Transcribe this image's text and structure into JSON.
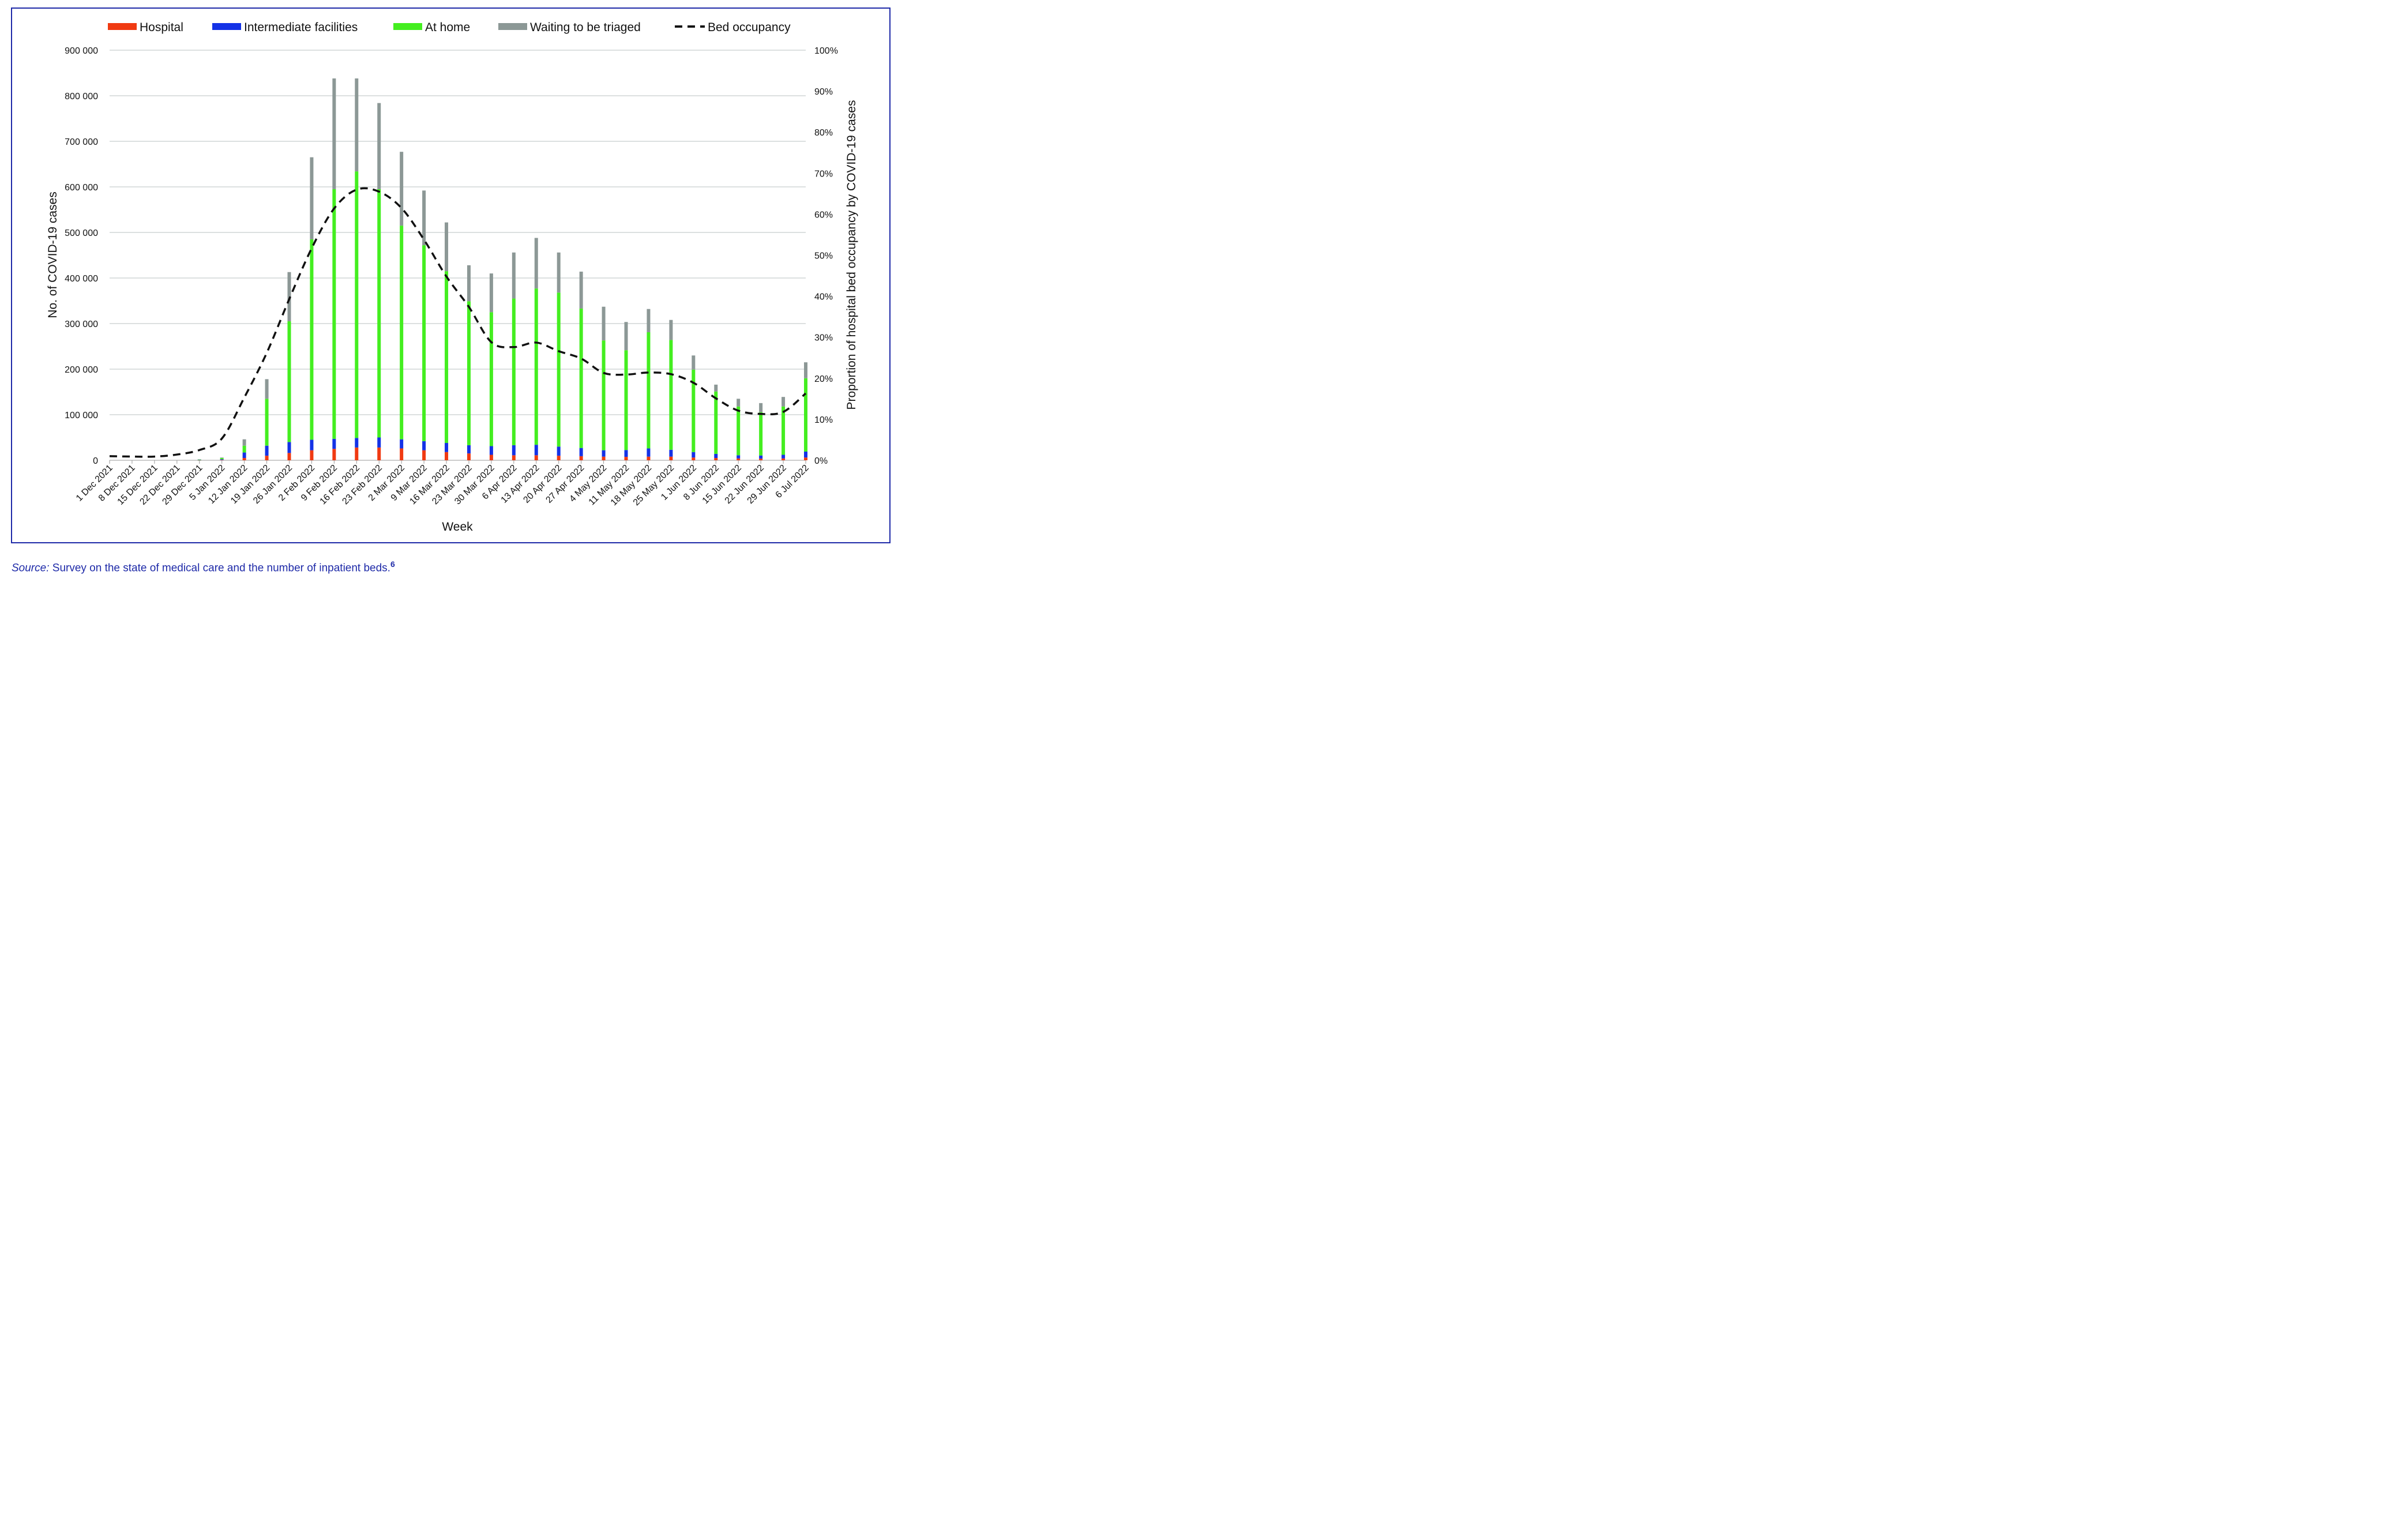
{
  "chart_data": {
    "type": "bar",
    "stacked": true,
    "xlabel": "Week",
    "ylabel": "No. of COVID-19 cases",
    "y2label": "Proportion of hospital bed occupancy by COVID-19 cases",
    "ylim": [
      0,
      900000
    ],
    "y2lim": [
      0,
      100
    ],
    "yticks": [
      "0",
      "100 000",
      "200 000",
      "300 000",
      "400 000",
      "500 000",
      "600 000",
      "700 000",
      "800 000",
      "900 000"
    ],
    "y2ticks": [
      "0%",
      "10%",
      "20%",
      "30%",
      "40%",
      "50%",
      "60%",
      "70%",
      "80%",
      "90%",
      "100%"
    ],
    "grid": true,
    "legend_position": "top",
    "categories": [
      "1 Dec 2021",
      "8 Dec 2021",
      "15 Dec 2021",
      "22 Dec 2021",
      "29 Dec 2021",
      "5 Jan 2022",
      "12 Jan 2022",
      "19 Jan 2022",
      "26 Jan 2022",
      "2 Feb 2022",
      "9 Feb 2022",
      "16 Feb 2022",
      "23 Feb 2022",
      "2 Mar 2022",
      "9 Mar 2022",
      "16 Mar 2022",
      "23 Mar 2022",
      "30 Mar 2022",
      "6 Apr 2022",
      "13 Apr 2022",
      "20 Apr 2022",
      "27 Apr 2022",
      "4 May 2022",
      "11 May 2022",
      "18 May 2022",
      "25 May 2022",
      "1 Jun 2022",
      "8 Jun 2022",
      "15 Jun 2022",
      "22 Jun 2022",
      "29 Jun 2022",
      "6 Jul 2022"
    ],
    "series": [
      {
        "name": "Hospital",
        "color": "#f03a12",
        "values": [
          0,
          0,
          0,
          0,
          200,
          800,
          5000,
          10000,
          16000,
          22000,
          25000,
          28000,
          28000,
          26000,
          22000,
          18000,
          15000,
          12000,
          11000,
          11000,
          10000,
          9000,
          8000,
          7500,
          8000,
          8000,
          6000,
          5000,
          4000,
          3500,
          4000,
          6000
        ]
      },
      {
        "name": "Intermediate facilities",
        "color": "#1432e6",
        "values": [
          0,
          0,
          0,
          0,
          300,
          1500,
          12000,
          22000,
          24000,
          23000,
          22000,
          21000,
          22000,
          20000,
          20000,
          20000,
          18000,
          19000,
          22000,
          23000,
          20000,
          18000,
          14000,
          15000,
          18000,
          15000,
          12000,
          9000,
          7000,
          7000,
          8000,
          13000
        ]
      },
      {
        "name": "At home",
        "color": "#44ee20",
        "values": [
          0,
          0,
          0,
          0,
          1000,
          2700,
          15000,
          103000,
          265000,
          440000,
          548000,
          585000,
          545000,
          469000,
          430000,
          377000,
          316000,
          294000,
          322000,
          343000,
          338000,
          306000,
          241000,
          219000,
          255000,
          241000,
          181000,
          137000,
          107000,
          95000,
          106000,
          161000
        ]
      },
      {
        "name": "Waiting to be triaged",
        "color": "#8c9896",
        "values": [
          0,
          0,
          0,
          0,
          500,
          1000,
          14000,
          43000,
          108000,
          180000,
          243000,
          204000,
          189000,
          162000,
          120000,
          107000,
          79000,
          85000,
          101000,
          111000,
          88000,
          81000,
          74000,
          62000,
          51000,
          44000,
          31000,
          15000,
          17000,
          20000,
          21000,
          35000
        ]
      }
    ],
    "line_series": {
      "name": "Bed occupancy",
      "color": "#111111",
      "axis": "right",
      "style": "dashed",
      "values": [
        1.0,
        0.9,
        0.9,
        1.4,
        2.5,
        5.3,
        15.3,
        26.2,
        39.3,
        51.7,
        61.4,
        66.0,
        65.5,
        61.5,
        53.8,
        44.8,
        37.4,
        28.8,
        27.6,
        28.7,
        26.6,
        24.8,
        21.3,
        20.9,
        21.4,
        21.0,
        18.9,
        15.1,
        12.1,
        11.3,
        11.8,
        16.3
      ]
    }
  },
  "source": {
    "label": "Source:",
    "text": "Survey on the state of medical care and the number of inpatient beds.",
    "ref": "6"
  }
}
